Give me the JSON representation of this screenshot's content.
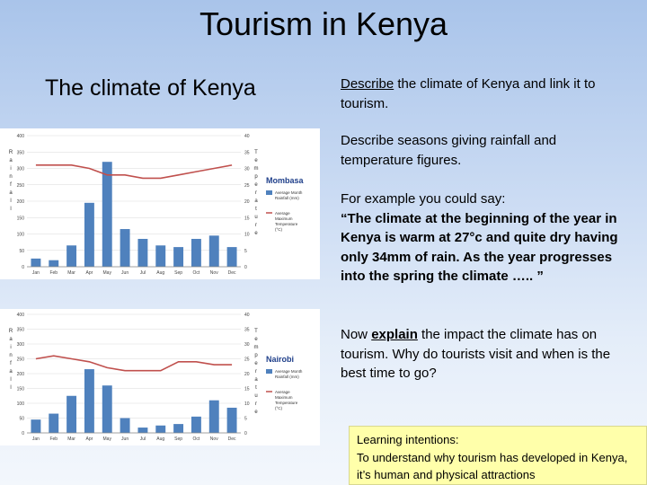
{
  "slide": {
    "title": "Tourism in Kenya",
    "subtitle": "The climate of Kenya"
  },
  "instructions": {
    "p1_verb": "Describe",
    "p1_rest": " the climate of Kenya and link it to tourism.",
    "p2": "Describe seasons giving rainfall and temperature figures.",
    "p3_intro": "For example you could say:",
    "p3_quote": "“The climate at the beginning of the year in Kenya is warm at 27°c and quite dry having only 34mm of rain.  As the year progresses into the spring the climate ….. ”",
    "p4_pre": "Now ",
    "p4_verb": "explain",
    "p4_rest": " the impact the climate has on tourism. Why do tourists visit and when is the best time to go?"
  },
  "learning": {
    "label": "Learning intentions:",
    "text": "To understand why tourism has developed in Kenya, it’s human and physical attractions"
  },
  "colors": {
    "bar": "#4f81bd",
    "line": "#c0504d"
  },
  "chart_data": [
    {
      "type": "bar",
      "title": "Mombasa",
      "categories": [
        "Jan",
        "Feb",
        "Mar",
        "Apr",
        "May",
        "Jun",
        "Jul",
        "Aug",
        "Sep",
        "Oct",
        "Nov",
        "Dec"
      ],
      "series": [
        {
          "name": "Average Month Rainfall (mm)",
          "axis": "left",
          "values": [
            25,
            20,
            65,
            195,
            320,
            115,
            85,
            65,
            60,
            85,
            95,
            60
          ]
        },
        {
          "name": "Average Maximum Temperature (°C)",
          "axis": "right",
          "chart": "line",
          "values": [
            31,
            31,
            31,
            30,
            28,
            28,
            27,
            27,
            28,
            29,
            30,
            31
          ]
        }
      ],
      "yticks_left": [
        "0",
        "50",
        "100",
        "150",
        "200",
        "250",
        "300",
        "350",
        "400"
      ],
      "yticks_right": [
        "0",
        "5",
        "10",
        "15",
        "20",
        "25",
        "30",
        "35",
        "40"
      ],
      "ylim_left": [
        0,
        400
      ],
      "ylim_right": [
        0,
        40
      ],
      "ylabel_left": "Rainfall",
      "ylabel_right": "Temperature"
    },
    {
      "type": "bar",
      "title": "Nairobi",
      "categories": [
        "Jan",
        "Feb",
        "Mar",
        "Apr",
        "May",
        "Jun",
        "Jul",
        "Aug",
        "Sep",
        "Oct",
        "Nov",
        "Dec"
      ],
      "series": [
        {
          "name": "Average Month Rainfall (mm)",
          "axis": "left",
          "values": [
            45,
            65,
            125,
            215,
            160,
            50,
            18,
            25,
            30,
            55,
            110,
            85
          ]
        },
        {
          "name": "Average Maximum Temperature (°C)",
          "axis": "right",
          "chart": "line",
          "values": [
            25,
            26,
            25,
            24,
            22,
            21,
            21,
            21,
            24,
            24,
            23,
            23
          ]
        }
      ],
      "yticks_left": [
        "0",
        "50",
        "100",
        "150",
        "200",
        "250",
        "300",
        "350",
        "400"
      ],
      "yticks_right": [
        "0",
        "5",
        "10",
        "15",
        "20",
        "25",
        "30",
        "35",
        "40"
      ],
      "ylim_left": [
        0,
        400
      ],
      "ylim_right": [
        0,
        40
      ],
      "ylabel_left": "Rainfall",
      "ylabel_right": "Temperature"
    }
  ]
}
